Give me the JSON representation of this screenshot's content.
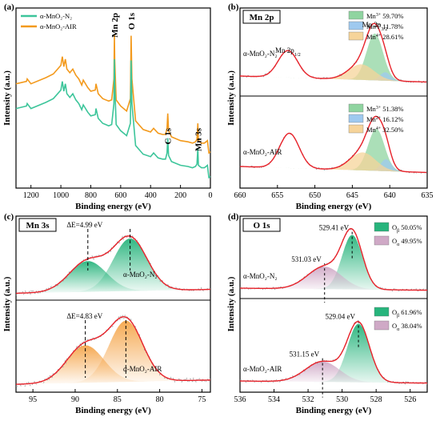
{
  "colors": {
    "n2": "#3cc59a",
    "air": "#f39a1d",
    "fit": "#e8222a",
    "raw": "#9a9a9a",
    "mn3": "#8fd4a0",
    "mn2": "#9ec9ef",
    "mn4": "#f6d49a",
    "orange_fill": "#f5a54a",
    "green_fill": "#27b47c",
    "purple_fill": "#cfa9c6",
    "axis": "#000000"
  },
  "chart_data": [
    {
      "type": "line",
      "panel_label": "(a)",
      "xlabel": "Binding energy (eV)",
      "ylabel": "Intensity (a.u.)",
      "xlim": [
        1300,
        0
      ],
      "x_reversed": true,
      "xticks": [
        "1200",
        "1000",
        "800",
        "600",
        "400",
        "200",
        "0"
      ],
      "legend": [
        {
          "name": "α-MnO₂-N₂",
          "color_key": "n2"
        },
        {
          "name": "α-MnO₂-AIR",
          "color_key": "air"
        }
      ],
      "peak_labels": [
        {
          "text": "Mn 2p",
          "x": 642
        },
        {
          "text": "O 1s",
          "x": 530
        },
        {
          "text": "C 1s",
          "x": 285
        },
        {
          "text": "Mn 3s",
          "x": 84
        }
      ],
      "series": [
        {
          "name": "α-MnO₂-AIR",
          "color_key": "air",
          "offset": 0.2,
          "x": [
            1300,
            1230,
            1225,
            1200,
            1100,
            1050,
            1000,
            990,
            980,
            970,
            960,
            940,
            920,
            900,
            880,
            860,
            850,
            820,
            800,
            770,
            765,
            750,
            720,
            700,
            680,
            660,
            645,
            642,
            640,
            630,
            600,
            560,
            535,
            530,
            525,
            500,
            450,
            400,
            380,
            350,
            320,
            300,
            290,
            285,
            280,
            260,
            200,
            150,
            120,
            100,
            90,
            84,
            80,
            60,
            40,
            20,
            10,
            0
          ],
          "y": [
            0.58,
            0.6,
            0.62,
            0.58,
            0.63,
            0.66,
            0.73,
            0.8,
            0.72,
            0.78,
            0.7,
            0.67,
            0.7,
            0.65,
            0.62,
            0.57,
            0.61,
            0.55,
            0.52,
            0.53,
            0.58,
            0.5,
            0.46,
            0.45,
            0.44,
            0.45,
            0.62,
            0.98,
            0.78,
            0.45,
            0.4,
            0.36,
            0.46,
            0.97,
            0.62,
            0.28,
            0.21,
            0.19,
            0.22,
            0.18,
            0.17,
            0.17,
            0.22,
            0.34,
            0.2,
            0.15,
            0.12,
            0.11,
            0.1,
            0.11,
            0.13,
            0.26,
            0.12,
            0.1,
            0.1,
            0.12,
            0.02,
            0.03
          ]
        },
        {
          "name": "α-MnO₂-N₂",
          "color_key": "n2",
          "offset": 0.0,
          "x": [
            1300,
            1230,
            1225,
            1200,
            1100,
            1050,
            1000,
            990,
            980,
            970,
            960,
            940,
            920,
            900,
            880,
            860,
            850,
            820,
            800,
            770,
            765,
            750,
            720,
            700,
            680,
            660,
            645,
            642,
            640,
            630,
            600,
            560,
            535,
            530,
            525,
            500,
            450,
            400,
            380,
            350,
            320,
            300,
            290,
            285,
            280,
            260,
            200,
            150,
            120,
            100,
            90,
            84,
            80,
            60,
            40,
            20,
            10,
            0
          ],
          "y": [
            0.58,
            0.6,
            0.62,
            0.58,
            0.63,
            0.66,
            0.73,
            0.8,
            0.72,
            0.78,
            0.7,
            0.67,
            0.7,
            0.65,
            0.62,
            0.57,
            0.61,
            0.55,
            0.52,
            0.53,
            0.58,
            0.5,
            0.46,
            0.45,
            0.44,
            0.45,
            0.62,
            0.98,
            0.78,
            0.45,
            0.4,
            0.36,
            0.46,
            0.97,
            0.62,
            0.28,
            0.21,
            0.19,
            0.22,
            0.18,
            0.17,
            0.17,
            0.22,
            0.34,
            0.2,
            0.15,
            0.12,
            0.11,
            0.1,
            0.11,
            0.13,
            0.26,
            0.12,
            0.1,
            0.1,
            0.12,
            0.02,
            0.03
          ]
        }
      ]
    },
    {
      "type": "area",
      "panel_label": "(b)",
      "title": "Mn 2p",
      "xlabel": "Binding energy (eV)",
      "ylabel": "Intensity (a.u.)",
      "xlim": [
        660,
        635
      ],
      "x_reversed": true,
      "xticks": [
        "660",
        "655",
        "650",
        "645",
        "640",
        "635"
      ],
      "peak_labels": [
        {
          "text": "Mn 2p",
          "sub": "1/2",
          "x": 653.6
        },
        {
          "text": "Mn 2p",
          "sub": "3/2",
          "x": 642.0
        }
      ],
      "samples": [
        {
          "name": "α-MnO₂-N₂",
          "legend": [
            {
              "ion": "Mn",
              "charge": "3+",
              "value": "59.70%",
              "color_key": "mn3"
            },
            {
              "ion": "Mn",
              "charge": "2+",
              "value": "11.78%",
              "color_key": "mn2"
            },
            {
              "ion": "Mn",
              "charge": "4+",
              "value": "28.61%",
              "color_key": "mn4"
            }
          ],
          "components": [
            {
              "label": "Mn3+",
              "center": 642.0,
              "height": 0.78,
              "width": 1.1,
              "color_key": "mn3"
            },
            {
              "label": "Mn2+",
              "center": 640.6,
              "height": 0.14,
              "width": 0.7,
              "color_key": "mn2"
            },
            {
              "label": "Mn4+",
              "center": 643.8,
              "height": 0.26,
              "width": 1.7,
              "color_key": "mn4"
            }
          ],
          "satellite": {
            "center": 653.6,
            "height": 0.45,
            "width": 1.3
          }
        },
        {
          "name": "α-MnO₂-AIR",
          "legend": [
            {
              "ion": "Mn",
              "charge": "3+",
              "value": "51.38%",
              "color_key": "mn3"
            },
            {
              "ion": "Mn",
              "charge": "2+",
              "value": "16.12%",
              "color_key": "mn2"
            },
            {
              "ion": "Mn",
              "charge": "4+",
              "value": "32.50%",
              "color_key": "mn4"
            }
          ],
          "components": [
            {
              "label": "Mn3+",
              "center": 641.8,
              "height": 0.7,
              "width": 1.1,
              "color_key": "mn3"
            },
            {
              "label": "Mn2+",
              "center": 640.5,
              "height": 0.2,
              "width": 0.7,
              "color_key": "mn2"
            },
            {
              "label": "Mn4+",
              "center": 643.6,
              "height": 0.3,
              "width": 1.7,
              "color_key": "mn4"
            }
          ],
          "satellite": {
            "center": 653.4,
            "height": 0.58,
            "width": 1.3
          }
        }
      ]
    },
    {
      "type": "area",
      "panel_label": "(c)",
      "title": "Mn 3s",
      "xlabel": "Binding energy (eV)",
      "ylabel": "Intensity (a.u.)",
      "xlim": [
        97,
        74
      ],
      "x_reversed": true,
      "xticks": [
        "95",
        "90",
        "85",
        "80",
        "75"
      ],
      "samples": [
        {
          "name": "α-MnO₂-N₂",
          "delta_label": "ΔE=4.99 eV",
          "peaks": [
            {
              "center": 83.5,
              "height": 0.82,
              "width": 2.0,
              "color_key": "green_fill"
            },
            {
              "center": 88.5,
              "height": 0.48,
              "width": 2.2,
              "color_key": "green_fill"
            }
          ],
          "dash_x": [
            88.5,
            83.5
          ]
        },
        {
          "name": "α-MnO₂-AIR",
          "delta_label": "ΔE=4.83 eV",
          "peaks": [
            {
              "center": 84.0,
              "height": 0.85,
              "width": 2.0,
              "color_key": "orange_fill"
            },
            {
              "center": 88.8,
              "height": 0.52,
              "width": 2.2,
              "color_key": "orange_fill"
            }
          ],
          "dash_x": [
            88.8,
            84.0
          ]
        }
      ]
    },
    {
      "type": "area",
      "panel_label": "(d)",
      "title": "O 1s",
      "xlabel": "Binding energy (eV)",
      "ylabel": "Intensity (a.u.)",
      "xlim": [
        536,
        525
      ],
      "x_reversed": true,
      "xticks": [
        "536",
        "534",
        "532",
        "530",
        "528",
        "526"
      ],
      "samples": [
        {
          "name": "α-MnO₂-N₂",
          "legend": [
            {
              "ion": "O",
              "sub": "β",
              "value": "50.05%",
              "color_key": "green_fill"
            },
            {
              "ion": "O",
              "sub": "α",
              "value": "49.95%",
              "color_key": "purple_fill"
            }
          ],
          "peaks": [
            {
              "label": "529.41 eV",
              "center": 529.41,
              "height": 0.8,
              "width": 0.6,
              "color_key": "green_fill"
            },
            {
              "label": "531.03 eV",
              "center": 531.03,
              "height": 0.33,
              "width": 1.0,
              "color_key": "purple_fill"
            }
          ]
        },
        {
          "name": "α-MnO₂-AIR",
          "legend": [
            {
              "ion": "O",
              "sub": "β",
              "value": "61.96%",
              "color_key": "green_fill"
            },
            {
              "ion": "O",
              "sub": "α",
              "value": "38.04%",
              "color_key": "purple_fill"
            }
          ],
          "peaks": [
            {
              "label": "529.04 eV",
              "center": 529.04,
              "height": 0.86,
              "width": 0.65,
              "color_key": "green_fill"
            },
            {
              "label": "531.15 eV",
              "center": 531.15,
              "height": 0.3,
              "width": 1.0,
              "color_key": "purple_fill"
            }
          ]
        }
      ]
    }
  ]
}
